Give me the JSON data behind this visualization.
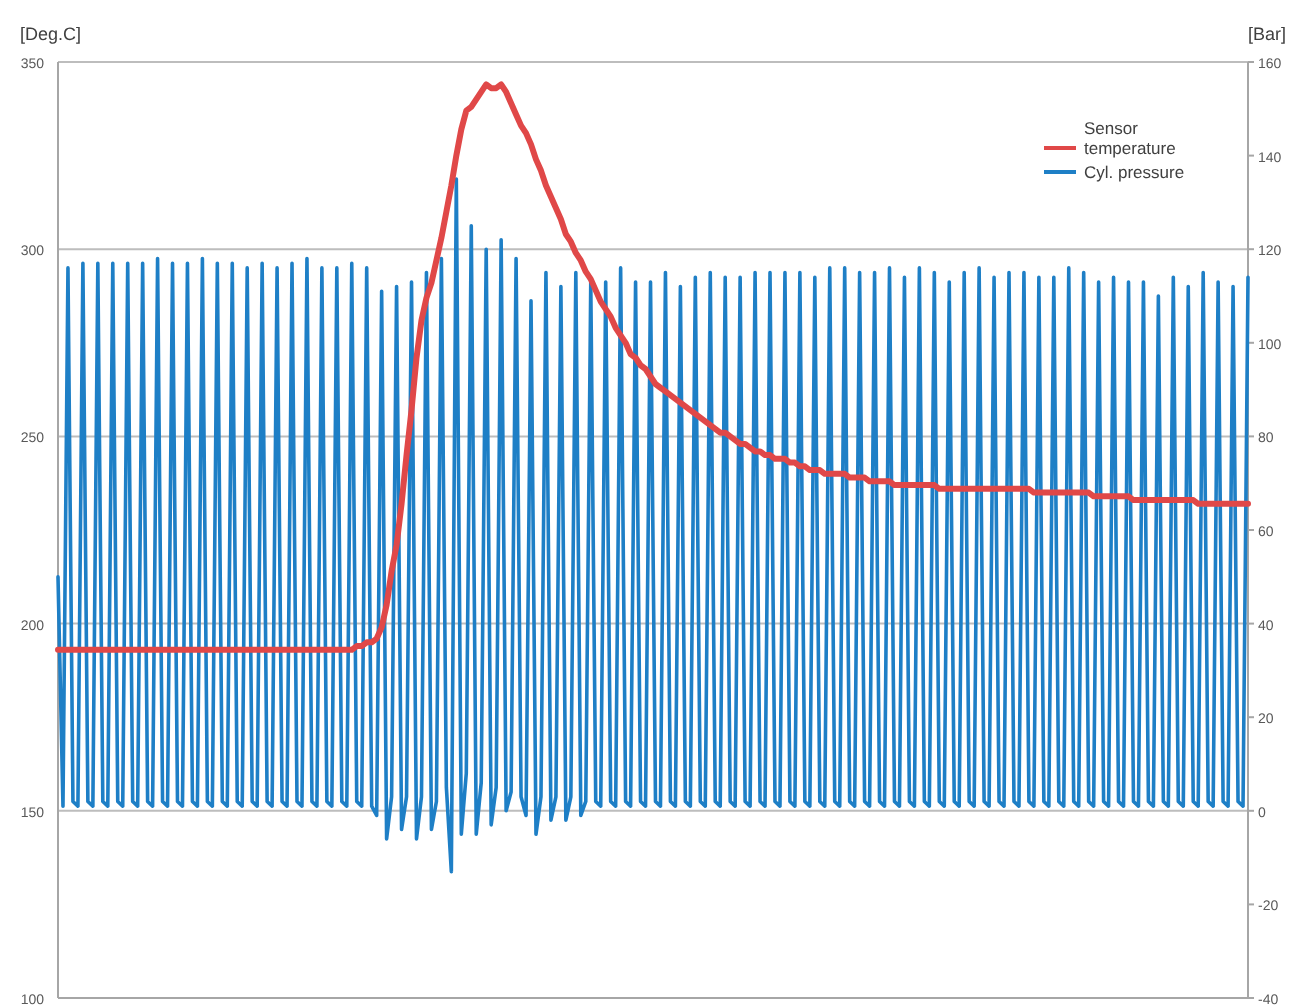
{
  "chart_data": {
    "type": "line",
    "ylabel": "[Deg.C]",
    "y2label": "[Bar]",
    "categories": [
      null,
      null,
      null,
      null,
      null,
      null,
      null,
      null,
      null,
      null,
      null,
      null,
      null,
      null,
      null,
      null,
      null,
      null,
      null,
      null,
      null,
      null,
      null,
      null,
      null,
      null,
      null,
      null,
      null,
      null,
      null,
      null,
      null,
      null,
      null,
      null,
      null,
      null,
      null,
      null,
      null,
      null,
      null,
      null,
      null,
      null,
      null,
      null,
      null,
      null,
      null,
      null,
      null,
      null,
      null,
      null,
      null,
      null,
      null,
      null,
      null,
      null,
      null,
      null,
      null,
      null,
      null,
      null,
      null,
      null,
      null,
      null,
      null,
      null,
      null,
      null,
      null,
      null,
      null,
      null,
      null,
      null,
      null,
      null,
      null,
      null,
      null,
      null,
      null,
      null,
      null,
      null,
      null,
      null,
      null,
      null,
      null,
      null,
      null,
      null,
      null,
      null,
      null,
      null,
      null,
      null,
      null,
      null,
      null,
      null,
      null,
      null,
      null,
      null,
      null,
      null,
      null,
      null,
      null,
      null,
      null,
      null,
      null,
      null,
      null,
      null,
      null,
      null,
      null,
      null,
      null,
      null,
      null,
      null,
      null,
      null,
      null,
      null,
      null,
      null,
      null,
      null,
      null,
      null,
      null,
      null,
      null,
      null,
      null,
      null,
      null,
      null,
      null,
      null,
      null,
      null,
      null,
      null,
      null,
      null,
      null,
      null,
      null,
      null,
      null,
      null,
      null,
      null,
      null,
      null,
      null,
      null,
      null,
      null,
      null,
      null,
      null,
      null,
      null,
      null,
      null,
      null,
      null,
      null,
      null,
      null,
      null,
      null,
      null,
      null,
      null,
      null,
      null,
      null,
      null,
      null,
      null,
      null,
      null,
      null,
      null,
      null,
      null,
      null,
      null,
      null,
      null,
      null,
      null,
      null,
      null,
      null,
      null,
      null,
      null,
      null,
      null,
      null,
      null,
      null,
      null,
      null,
      null,
      null,
      null,
      null,
      null,
      null,
      null,
      null,
      null,
      null,
      null,
      null,
      null,
      null,
      null,
      null,
      null,
      null
    ],
    "series": [
      {
        "name": "Sensor temperature",
        "color": "#e04848",
        "values": [
          193,
          193,
          193,
          193,
          193,
          193,
          193,
          193,
          193,
          193,
          193,
          193,
          193,
          193,
          193,
          193,
          193,
          193,
          193,
          193,
          193,
          193,
          193,
          193,
          193,
          193,
          193,
          193,
          193,
          193,
          193,
          193,
          193,
          193,
          193,
          193,
          193,
          193,
          193,
          193,
          193,
          193,
          193,
          193,
          193,
          193,
          193,
          193,
          193,
          193,
          193,
          193,
          193,
          193,
          193,
          193,
          193,
          193,
          193,
          193,
          194,
          194,
          195,
          195,
          196,
          199,
          205,
          214,
          221,
          232,
          245,
          257,
          271,
          281,
          287,
          291,
          297,
          303,
          310,
          317,
          325,
          332,
          337,
          338,
          340,
          342,
          344,
          343,
          343,
          344,
          342,
          339,
          336,
          333,
          331,
          328,
          324,
          321,
          317,
          314,
          311,
          308,
          304,
          302,
          299,
          297,
          294,
          292,
          289,
          286,
          284,
          282,
          279,
          277,
          275,
          272,
          271,
          269,
          268,
          266,
          264,
          263,
          262,
          261,
          260,
          259,
          258,
          257,
          256,
          255,
          254,
          253,
          252,
          251,
          251,
          250,
          249,
          248,
          248,
          247,
          246,
          246,
          245,
          245,
          244,
          244,
          244,
          243,
          243,
          242,
          242,
          241,
          241,
          241,
          240,
          240,
          240,
          240,
          240,
          239,
          239,
          239,
          239,
          238,
          238,
          238,
          238,
          238,
          237,
          237,
          237,
          237,
          237,
          237,
          237,
          237,
          237,
          236,
          236,
          236,
          236,
          236,
          236,
          236,
          236,
          236,
          236,
          236,
          236,
          236,
          236,
          236,
          236,
          236,
          236,
          236,
          235,
          235,
          235,
          235,
          235,
          235,
          235,
          235,
          235,
          235,
          235,
          235,
          234,
          234,
          234,
          234,
          234,
          234,
          234,
          234,
          233,
          233,
          233,
          233,
          233,
          233,
          233,
          233,
          233,
          233,
          233,
          233,
          233,
          232,
          232,
          232,
          232,
          232,
          232,
          232,
          232,
          232,
          232,
          232
        ]
      },
      {
        "name": "Cyl. pressure",
        "color": "#1e7fc6",
        "axis": "y2",
        "values": [
          50,
          1,
          116,
          2,
          1,
          117,
          2,
          1,
          117,
          2,
          1,
          117,
          2,
          1,
          117,
          2,
          1,
          117,
          2,
          1,
          118,
          2,
          1,
          117,
          2,
          1,
          117,
          2,
          1,
          118,
          2,
          1,
          117,
          2,
          1,
          117,
          2,
          1,
          116,
          2,
          1,
          117,
          2,
          1,
          116,
          2,
          1,
          117,
          2,
          1,
          118,
          2,
          1,
          116,
          2,
          1,
          116,
          2,
          1,
          117,
          2,
          1,
          116,
          1,
          -1,
          111,
          -6,
          3,
          112,
          -4,
          3,
          113,
          -6,
          3,
          115,
          -4,
          2,
          118,
          5,
          -13,
          135,
          -5,
          8,
          125,
          -5,
          6,
          120,
          -3,
          5,
          122,
          0,
          4,
          118,
          3,
          -1,
          109,
          -5,
          3,
          115,
          -2,
          3,
          112,
          -2,
          3,
          115,
          -1,
          2,
          113,
          2,
          1,
          113,
          2,
          1,
          116,
          2,
          1,
          113,
          2,
          1,
          113,
          2,
          1,
          115,
          2,
          1,
          112,
          2,
          1,
          114,
          2,
          1,
          115,
          2,
          1,
          114,
          2,
          1,
          114,
          2,
          1,
          115,
          2,
          1,
          115,
          2,
          1,
          115,
          2,
          1,
          115,
          2,
          1,
          114,
          2,
          1,
          116,
          2,
          1,
          116,
          2,
          1,
          115,
          2,
          1,
          115,
          2,
          1,
          116,
          2,
          1,
          114,
          2,
          1,
          116,
          2,
          1,
          115,
          2,
          1,
          113,
          2,
          1,
          115,
          2,
          1,
          116,
          2,
          1,
          114,
          2,
          1,
          115,
          2,
          1,
          115,
          2,
          1,
          114,
          2,
          1,
          114,
          2,
          1,
          116,
          2,
          1,
          115,
          2,
          1,
          113,
          2,
          1,
          114,
          2,
          1,
          113,
          2,
          1,
          113,
          2,
          1,
          110,
          2,
          1,
          114,
          2,
          1,
          112,
          2,
          1,
          115,
          2,
          1,
          113,
          2,
          1,
          112,
          2,
          1,
          114
        ]
      }
    ],
    "ylim": [
      100,
      350
    ],
    "yticks": [
      100,
      150,
      200,
      250,
      300,
      350
    ],
    "y2lim": [
      -40,
      160
    ],
    "y2ticks": [
      -40,
      -20,
      0,
      20,
      40,
      60,
      80,
      100,
      120,
      140,
      160
    ],
    "grid": "y",
    "legend": "top right",
    "marker": "none",
    "line_style": "solid"
  }
}
